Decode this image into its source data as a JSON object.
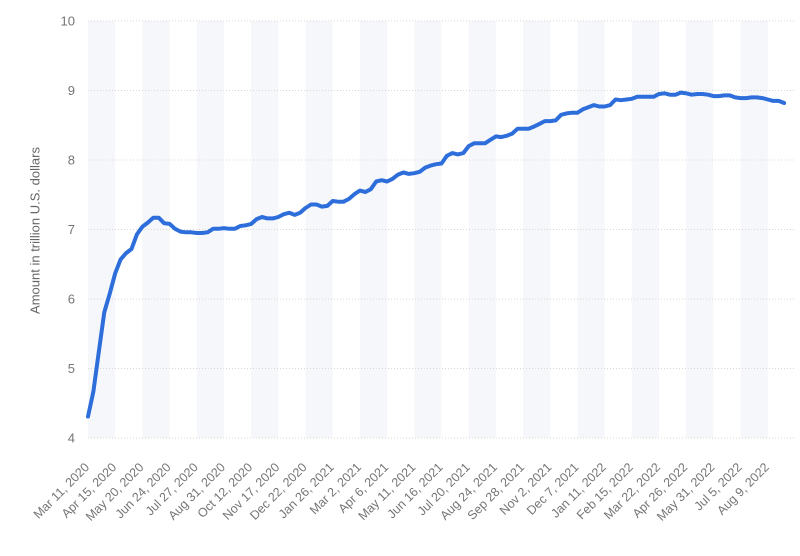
{
  "colors": {
    "line": "#2e6edb",
    "band": "#f5f7fb",
    "gridline": "#d7d8d2",
    "tick_text": "#757575",
    "axis_title_text": "#666666",
    "background": "#ffffff"
  },
  "chart_data": {
    "type": "line",
    "title": "",
    "xlabel": "",
    "ylabel": "Amount in trillion U.S. dollars",
    "ylim": [
      4,
      10
    ],
    "y_ticks": [
      4,
      5,
      6,
      7,
      8,
      9,
      10
    ],
    "grid": "horizontal-dotted",
    "legend": "none",
    "plot_background": "alternating-vertical-bands",
    "x_ticks_every_n_points": 5,
    "x_tick_labels": [
      "Mar 11, 2020",
      "Apr 15, 2020",
      "May 20, 2020",
      "Jun 24, 2020",
      "Jul 27, 2020",
      "Aug 31, 2020",
      "Oct 12, 2020",
      "Nov 17, 2020",
      "Dec 22, 2020",
      "Jan 26, 2021",
      "Mar 2, 2021",
      "Apr 6, 2021",
      "May 11, 2021",
      "Jun 16, 2021",
      "Jul 20, 2021",
      "Aug 24, 2021",
      "Sep 28, 2021",
      "Nov 2, 2021",
      "Dec 7, 2021",
      "Jan 11, 2022",
      "Feb 15, 2022",
      "Mar 22, 2022",
      "Apr 26, 2022",
      "May 31, 2022",
      "Jul 5, 2022",
      "Aug 9, 2022"
    ],
    "values": [
      4.31,
      4.67,
      5.25,
      5.81,
      6.08,
      6.37,
      6.57,
      6.66,
      6.72,
      6.93,
      7.04,
      7.1,
      7.17,
      7.17,
      7.09,
      7.08,
      7.01,
      6.97,
      6.96,
      6.96,
      6.95,
      6.95,
      6.96,
      7.01,
      7.01,
      7.02,
      7.01,
      7.01,
      7.05,
      7.06,
      7.08,
      7.15,
      7.18,
      7.16,
      7.16,
      7.18,
      7.22,
      7.24,
      7.21,
      7.24,
      7.31,
      7.36,
      7.36,
      7.33,
      7.34,
      7.41,
      7.4,
      7.4,
      7.44,
      7.51,
      7.56,
      7.54,
      7.58,
      7.69,
      7.71,
      7.69,
      7.73,
      7.79,
      7.82,
      7.8,
      7.81,
      7.83,
      7.89,
      7.92,
      7.94,
      7.95,
      8.06,
      8.1,
      8.08,
      8.1,
      8.2,
      8.24,
      8.24,
      8.24,
      8.29,
      8.34,
      8.33,
      8.35,
      8.38,
      8.45,
      8.45,
      8.45,
      8.48,
      8.52,
      8.56,
      8.56,
      8.57,
      8.65,
      8.67,
      8.68,
      8.68,
      8.73,
      8.76,
      8.79,
      8.77,
      8.77,
      8.79,
      8.87,
      8.86,
      8.87,
      8.88,
      8.91,
      8.91,
      8.91,
      8.91,
      8.95,
      8.96,
      8.94,
      8.94,
      8.97,
      8.96,
      8.94,
      8.95,
      8.95,
      8.94,
      8.92,
      8.92,
      8.93,
      8.93,
      8.9,
      8.89,
      8.89,
      8.9,
      8.9,
      8.89,
      8.87,
      8.85,
      8.85,
      8.82
    ]
  }
}
